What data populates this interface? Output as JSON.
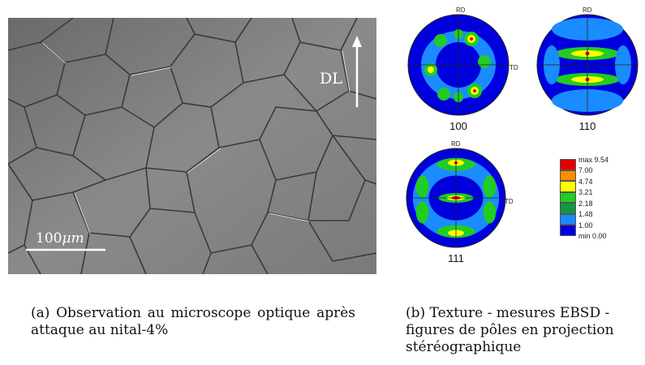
{
  "micrograph": {
    "direction_label": "DL",
    "scale_value": "100",
    "scale_unit": "μm"
  },
  "pole_figures": {
    "rd_label": "RD",
    "td_label": "TD",
    "figures": [
      {
        "label": "100"
      },
      {
        "label": "110"
      },
      {
        "label": "111"
      }
    ]
  },
  "legend": {
    "entries": [
      {
        "label": "max 9.54",
        "color": "#e00000"
      },
      {
        "label": "7.00",
        "color": "#ff8c00"
      },
      {
        "label": "4.74",
        "color": "#ffff00"
      },
      {
        "label": "3.21",
        "color": "#22cc22"
      },
      {
        "label": "2.18",
        "color": "#129945"
      },
      {
        "label": "1.48",
        "color": "#1a8cff"
      },
      {
        "label": "1.00",
        "color": "#0000dd"
      },
      {
        "label": "min 0.00",
        "color": "#ffffff"
      }
    ]
  },
  "captions": {
    "a": "(a) Observation au microscope optique après attaque au nital-4%",
    "b": "(b) Texture - mesures EBSD - figures de pôles en projection stéréographique"
  }
}
